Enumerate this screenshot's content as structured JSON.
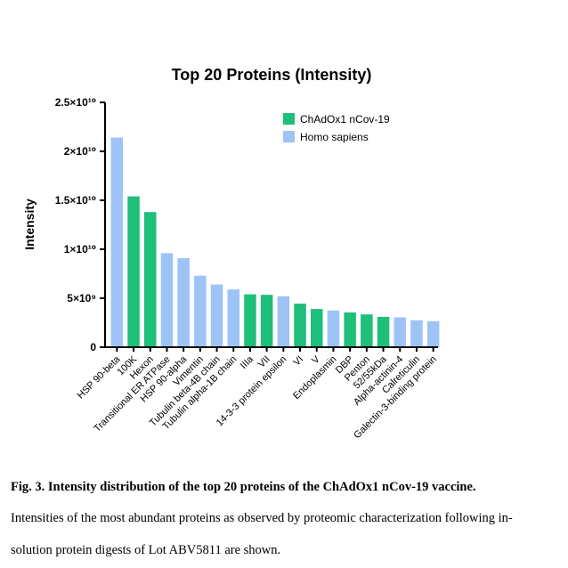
{
  "chart_data": {
    "type": "bar",
    "title": "Top 20 Proteins (Intensity)",
    "xlabel": "",
    "ylabel": "Intensity",
    "ylim": [
      0,
      25000000000
    ],
    "yticks": [
      {
        "value": 0,
        "label": "0"
      },
      {
        "value": 5000000000,
        "label": "5×10⁹"
      },
      {
        "value": 10000000000,
        "label": "1×10¹⁰"
      },
      {
        "value": 15000000000,
        "label": "1.5×10¹⁰"
      },
      {
        "value": 20000000000,
        "label": "2×10¹⁰"
      },
      {
        "value": 25000000000,
        "label": "2.5×10¹⁰"
      }
    ],
    "legend": {
      "placement": "top-right",
      "entries": [
        {
          "name": "ChAdOx1 nCov-19",
          "color": "#1dbf7a"
        },
        {
          "name": "Homo sapiens",
          "color": "#9dc3f7"
        }
      ]
    },
    "categories": [
      "HSP 90-beta",
      "100K",
      "Hexon",
      "Transitional ER ATPase",
      "HSP 90-alpha",
      "Vimentin",
      "Tubulin beta-4B chain",
      "Tubulin alpha-1B chain",
      "IIIa",
      "VII",
      "14-3-3 protein epsilon",
      "VI",
      "V",
      "Endoplasmin",
      "DBP",
      "Penton",
      "52/55kDa",
      "Alpha-actinin-4",
      "Calreticulin",
      "Galectin-3-binding protein"
    ],
    "values": [
      21400000000,
      15400000000,
      13800000000,
      9600000000,
      9100000000,
      7300000000,
      6400000000,
      5900000000,
      5400000000,
      5350000000,
      5200000000,
      4450000000,
      3900000000,
      3750000000,
      3550000000,
      3350000000,
      3100000000,
      3050000000,
      2750000000,
      2650000000
    ],
    "sources": [
      "Homo sapiens",
      "ChAdOx1 nCov-19",
      "ChAdOx1 nCov-19",
      "Homo sapiens",
      "Homo sapiens",
      "Homo sapiens",
      "Homo sapiens",
      "Homo sapiens",
      "ChAdOx1 nCov-19",
      "ChAdOx1 nCov-19",
      "Homo sapiens",
      "ChAdOx1 nCov-19",
      "ChAdOx1 nCov-19",
      "Homo sapiens",
      "ChAdOx1 nCov-19",
      "ChAdOx1 nCov-19",
      "ChAdOx1 nCov-19",
      "Homo sapiens",
      "Homo sapiens",
      "Homo sapiens"
    ]
  },
  "caption": {
    "title": "Fig. 3. Intensity distribution of the top 20 proteins of the ChAdOx1 nCov-19 vaccine.",
    "line1": "Intensities of the most abundant proteins as observed by proteomic characterization following in-",
    "line2": "solution protein digests of Lot ABV5811 are shown."
  }
}
